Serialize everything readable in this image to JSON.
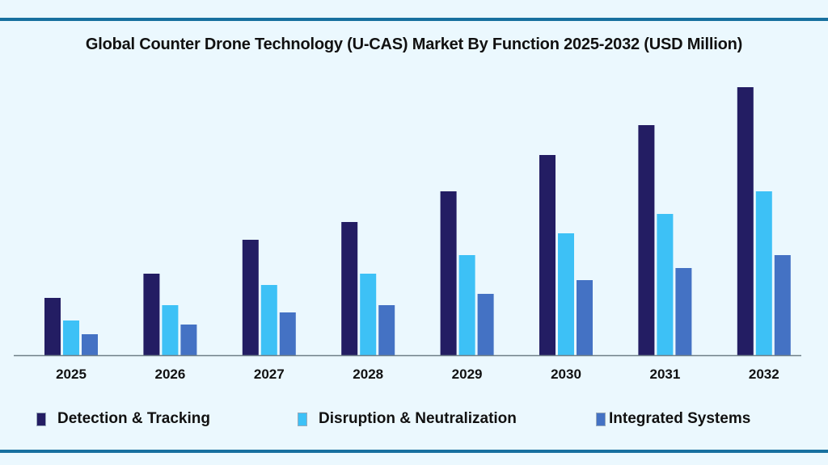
{
  "chart_data": {
    "type": "bar",
    "title": "Global Counter Drone Technology (U-CAS) Market By Function 2025-2032 (USD Million)",
    "xlabel": "",
    "ylabel": "",
    "categories": [
      "2025",
      "2026",
      "2027",
      "2028",
      "2029",
      "2030",
      "2031",
      "2032"
    ],
    "series": [
      {
        "name": "Detection & Tracking",
        "color": "#231d63",
        "values": [
          71,
          101,
          143,
          165,
          203,
          248,
          285,
          332
        ]
      },
      {
        "name": "Disruption & Neutralization",
        "color": "#3dc1f6",
        "values": [
          43,
          62,
          87,
          101,
          124,
          151,
          175,
          203
        ]
      },
      {
        "name": "Integrated Systems",
        "color": "#4472c4",
        "values": [
          26,
          38,
          53,
          62,
          76,
          93,
          108,
          124
        ]
      }
    ],
    "ylim": [
      0,
      340
    ],
    "grid": false,
    "y_axis_shown": false,
    "legend_position": "bottom"
  }
}
